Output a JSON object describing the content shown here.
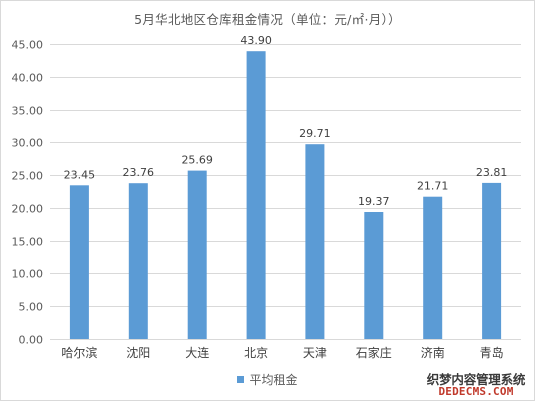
{
  "chart_data": {
    "type": "bar",
    "title": "5月华北地区仓库租金情况（单位：元/㎡·月））",
    "categories": [
      "哈尔滨",
      "沈阳",
      "大连",
      "北京",
      "天津",
      "石家庄",
      "济南",
      "青岛"
    ],
    "series": [
      {
        "name": "平均租金",
        "values": [
          23.45,
          23.76,
          25.69,
          43.9,
          29.71,
          19.37,
          21.71,
          23.81
        ],
        "labels": [
          "23.45",
          "23.76",
          "25.69",
          "43.90",
          "29.71",
          "19.37",
          "21.71",
          "23.81"
        ],
        "color": "#5b9bd5"
      }
    ],
    "yticks": [
      "0.00",
      "5.00",
      "10.00",
      "15.00",
      "20.00",
      "25.00",
      "30.00",
      "35.00",
      "40.00",
      "45.00"
    ],
    "ylim": [
      0,
      45
    ],
    "grid": true,
    "legend": "bottom"
  },
  "watermark": {
    "line1": "织梦内容管理系统",
    "line2": "DEDECMS.COM"
  },
  "colors": {
    "bar": "#5b9bd5",
    "grid": "#d9d9d9",
    "text": "#595959"
  }
}
